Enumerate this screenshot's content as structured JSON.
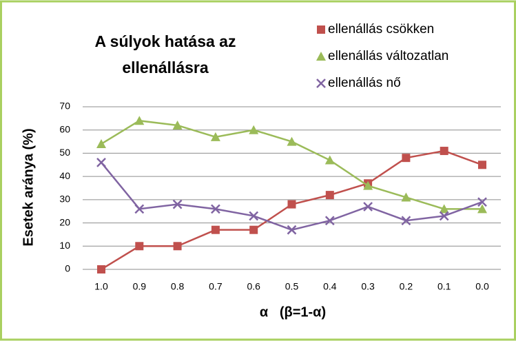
{
  "chart_data": {
    "type": "line",
    "title": [
      "A súlyok hatása az",
      "ellenállásra"
    ],
    "x_label": "α   (β=1-α)",
    "y_label": "Esetek aránya (%)",
    "categories": [
      "1.0",
      "0.9",
      "0.8",
      "0.7",
      "0.6",
      "0.5",
      "0.4",
      "0.3",
      "0.2",
      "0.1",
      "0.0"
    ],
    "series": [
      {
        "name": "ellenállás csökken",
        "color": "#c0504d",
        "marker": "square",
        "values": [
          0,
          10,
          10,
          17,
          17,
          28,
          32,
          37,
          48,
          51,
          45
        ]
      },
      {
        "name": "ellenállás változatlan",
        "color": "#9bbb59",
        "marker": "triangle",
        "values": [
          54,
          64,
          62,
          57,
          60,
          55,
          47,
          36,
          31,
          26,
          26
        ]
      },
      {
        "name": "ellenállás nő",
        "color": "#8064a2",
        "marker": "x",
        "values": [
          46,
          26,
          28,
          26,
          23,
          17,
          21,
          27,
          21,
          23,
          29
        ]
      }
    ],
    "ylim": [
      0,
      70
    ],
    "yticks": [
      0,
      10,
      20,
      30,
      40,
      50,
      60,
      70
    ],
    "grid": true,
    "legend": "top-right"
  }
}
